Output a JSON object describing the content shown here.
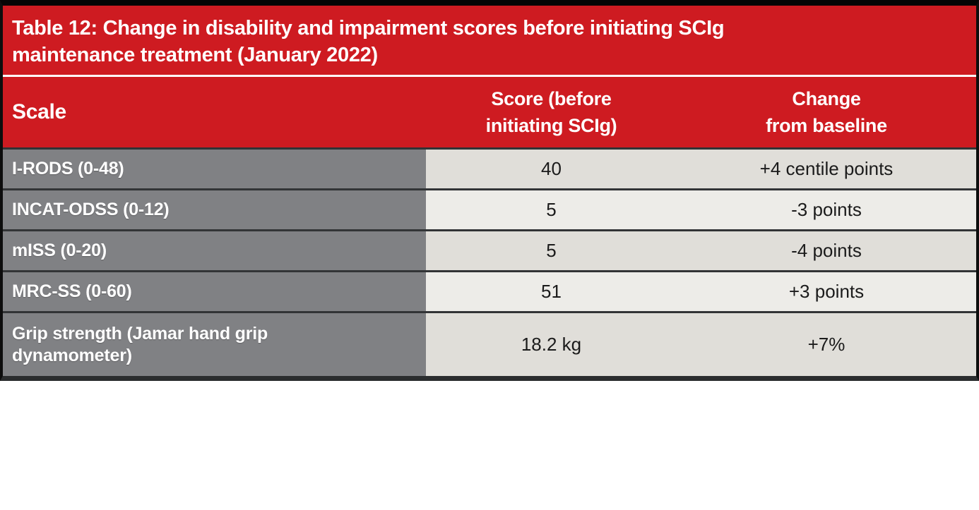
{
  "table": {
    "title": "Table 12: Change in disability and impairment scores before initiating SCIg\nmaintenance treatment (January 2022)",
    "headers": {
      "scale": "Scale",
      "score": "Score (before\ninitiating SCIg)",
      "change": "Change\nfrom baseline"
    },
    "rows": [
      {
        "scale": "I-RODS (0-48)",
        "score": "40",
        "change": "+4 centile points"
      },
      {
        "scale": "INCAT-ODSS (0-12)",
        "score": "5",
        "change": "-3 points"
      },
      {
        "scale": "mISS (0-20)",
        "score": "5",
        "change": "-4 points"
      },
      {
        "scale": "MRC-SS (0-60)",
        "score": "51",
        "change": "+3 points"
      },
      {
        "scale": "Grip strength (Jamar hand grip\ndynamometer)",
        "score": "18.2 kg",
        "change": "+7%"
      }
    ],
    "colors": {
      "header_red": "#ce1b21",
      "scale_column_gray": "#808184",
      "row_shade_dark": "#e0ded9",
      "row_shade_light": "#edece8",
      "divider_dark": "#323436",
      "border_black": "#050505",
      "text_white": "#ffffff",
      "text_dark": "#1b1b1b"
    }
  }
}
